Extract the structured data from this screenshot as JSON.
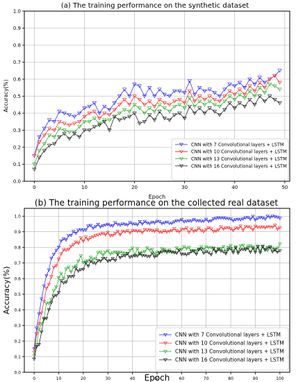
{
  "chart_data": [
    {
      "type": "line",
      "title": "(a) The training performance on the synthetic dataset",
      "xlabel": "Epoch",
      "ylabel": "Accuracy(%)",
      "xlim": [
        -2,
        51
      ],
      "ylim": [
        0,
        1.0
      ],
      "xticks": [
        0,
        10,
        20,
        30,
        40,
        50
      ],
      "yticks": [
        0.0,
        0.1,
        0.2,
        0.3,
        0.4,
        0.5,
        0.6,
        0.7,
        0.8,
        0.9,
        1.0
      ],
      "grid": true,
      "legend_position": "lower-right",
      "x": [
        0,
        1,
        2,
        3,
        4,
        5,
        6,
        7,
        8,
        9,
        10,
        11,
        12,
        13,
        14,
        15,
        16,
        17,
        18,
        19,
        20,
        21,
        22,
        23,
        24,
        25,
        26,
        27,
        28,
        29,
        30,
        31,
        32,
        33,
        34,
        35,
        36,
        37,
        38,
        39,
        40,
        41,
        42,
        43,
        44,
        45,
        46,
        47,
        48,
        49
      ],
      "series": [
        {
          "name": "CNN with 7 Convolutional layers + LSTM",
          "color": "#1f1fff",
          "marker": "down-triangle",
          "values": [
            0.15,
            0.26,
            0.31,
            0.36,
            0.35,
            0.41,
            0.4,
            0.39,
            0.38,
            0.4,
            0.43,
            0.44,
            0.46,
            0.4,
            0.44,
            0.42,
            0.46,
            0.5,
            0.54,
            0.5,
            0.57,
            0.56,
            0.5,
            0.55,
            0.5,
            0.54,
            0.51,
            0.5,
            0.53,
            0.53,
            0.52,
            0.59,
            0.51,
            0.55,
            0.53,
            0.54,
            0.52,
            0.5,
            0.54,
            0.57,
            0.56,
            0.58,
            0.55,
            0.6,
            0.57,
            0.61,
            0.58,
            0.6,
            0.62,
            0.65
          ]
        },
        {
          "name": "CNN with 10 Convolutional layers + LSTM",
          "color": "#ff1f1f",
          "marker": "down-triangle",
          "values": [
            0.15,
            0.23,
            0.27,
            0.31,
            0.3,
            0.35,
            0.34,
            0.33,
            0.34,
            0.35,
            0.38,
            0.4,
            0.41,
            0.37,
            0.4,
            0.39,
            0.42,
            0.45,
            0.48,
            0.45,
            0.5,
            0.48,
            0.45,
            0.47,
            0.44,
            0.48,
            0.46,
            0.45,
            0.47,
            0.48,
            0.46,
            0.53,
            0.47,
            0.5,
            0.48,
            0.5,
            0.48,
            0.47,
            0.5,
            0.53,
            0.51,
            0.54,
            0.51,
            0.56,
            0.53,
            0.58,
            0.55,
            0.6,
            0.62,
            0.58
          ]
        },
        {
          "name": "CNN with 13 Convolutional layers + LSTM",
          "color": "#1fae1f",
          "marker": "down-triangle",
          "values": [
            0.1,
            0.18,
            0.22,
            0.27,
            0.26,
            0.31,
            0.3,
            0.29,
            0.29,
            0.32,
            0.35,
            0.35,
            0.37,
            0.34,
            0.36,
            0.36,
            0.38,
            0.4,
            0.42,
            0.41,
            0.45,
            0.43,
            0.4,
            0.43,
            0.41,
            0.45,
            0.43,
            0.41,
            0.44,
            0.45,
            0.43,
            0.49,
            0.44,
            0.47,
            0.45,
            0.47,
            0.45,
            0.44,
            0.47,
            0.5,
            0.48,
            0.51,
            0.49,
            0.53,
            0.5,
            0.55,
            0.52,
            0.57,
            0.56,
            0.54
          ]
        },
        {
          "name": "CNN with 16 Convolutional layers + LSTM",
          "color": "#111111",
          "marker": "down-triangle",
          "values": [
            0.07,
            0.14,
            0.18,
            0.21,
            0.22,
            0.26,
            0.28,
            0.25,
            0.28,
            0.26,
            0.3,
            0.3,
            0.32,
            0.33,
            0.35,
            0.3,
            0.38,
            0.36,
            0.37,
            0.38,
            0.4,
            0.34,
            0.35,
            0.39,
            0.36,
            0.41,
            0.37,
            0.36,
            0.39,
            0.4,
            0.37,
            0.44,
            0.4,
            0.43,
            0.4,
            0.43,
            0.41,
            0.39,
            0.42,
            0.46,
            0.43,
            0.46,
            0.44,
            0.48,
            0.45,
            0.5,
            0.47,
            0.5,
            0.48,
            0.46
          ]
        }
      ]
    },
    {
      "type": "line",
      "title": "(b) The training performance on the collected real dataset",
      "xlabel": "Epoch",
      "ylabel": "Accuracy(%)",
      "xlim": [
        -4,
        104
      ],
      "ylim": [
        0,
        1.05
      ],
      "xticks": [
        0,
        10,
        20,
        30,
        40,
        50,
        60,
        70,
        80,
        90,
        100
      ],
      "yticks": [
        0.0,
        0.1,
        0.2,
        0.3,
        0.4,
        0.5,
        0.6,
        0.7,
        0.8,
        0.9,
        1.0
      ],
      "grid": true,
      "legend_position": "lower-right",
      "series": [
        {
          "name": "CNN with 7 Convolutional layers + LSTM",
          "color": "#1f1fff",
          "marker": "down-triangle",
          "plateau": 0.94,
          "end": 0.995,
          "rate": 0.18,
          "start": 0.15,
          "noise": 0.012,
          "seed": 7
        },
        {
          "name": "CNN with 10 Convolutional layers + LSTM",
          "color": "#ff1f1f",
          "marker": "down-triangle",
          "plateau": 0.89,
          "end": 0.93,
          "rate": 0.15,
          "start": 0.12,
          "noise": 0.015,
          "seed": 11
        },
        {
          "name": "CNN with 13 Convolutional layers + LSTM",
          "color": "#1fae1f",
          "marker": "down-triangle",
          "plateau": 0.77,
          "end": 0.8,
          "rate": 0.13,
          "start": 0.09,
          "noise": 0.022,
          "seed": 13
        },
        {
          "name": "CNN with 16 Convolutional layers + LSTM",
          "color": "#111111",
          "marker": "down-triangle",
          "plateau": 0.74,
          "end": 0.79,
          "rate": 0.12,
          "start": 0.06,
          "noise": 0.02,
          "seed": 17
        }
      ]
    }
  ]
}
